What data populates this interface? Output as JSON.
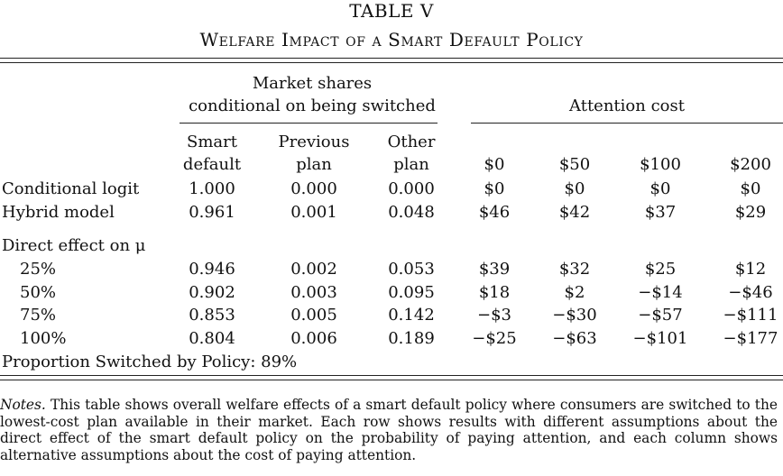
{
  "table_number": "TABLE V",
  "table_title": "Welfare Impact of a Smart Default Policy",
  "group_headers": {
    "market_shares_line1": "Market shares",
    "market_shares_line2": "conditional on being switched",
    "attention_cost": "Attention cost"
  },
  "columns": [
    {
      "line1": "Smart",
      "line2": "default"
    },
    {
      "line1": "Previous",
      "line2": "plan"
    },
    {
      "line1": "Other",
      "line2": "plan"
    },
    {
      "line1": "",
      "line2": "$0"
    },
    {
      "line1": "",
      "line2": "$50"
    },
    {
      "line1": "",
      "line2": "$100"
    },
    {
      "line1": "",
      "line2": "$200"
    }
  ],
  "rows": [
    {
      "label": "Conditional logit",
      "values": [
        "1.000",
        "0.000",
        "0.000",
        "$0",
        "$0",
        "$0",
        "$0"
      ]
    },
    {
      "label": "Hybrid model",
      "values": [
        "0.961",
        "0.001",
        "0.048",
        "$46",
        "$42",
        "$37",
        "$29"
      ]
    }
  ],
  "section_label": "Direct effect on μ",
  "section_rows": [
    {
      "label": "25%",
      "values": [
        "0.946",
        "0.002",
        "0.053",
        "$39",
        "$32",
        "$25",
        "$12"
      ]
    },
    {
      "label": "50%",
      "values": [
        "0.902",
        "0.003",
        "0.095",
        "$18",
        "$2",
        "−$14",
        "−$46"
      ]
    },
    {
      "label": "75%",
      "values": [
        "0.853",
        "0.005",
        "0.142",
        "−$3",
        "−$30",
        "−$57",
        "−$111"
      ]
    },
    {
      "label": "100%",
      "values": [
        "0.804",
        "0.006",
        "0.189",
        "−$25",
        "−$63",
        "−$101",
        "−$177"
      ]
    }
  ],
  "footer_row": "Proportion Switched by Policy: 89%",
  "notes": {
    "label": "Notes.",
    "text": "This table shows overall welfare effects of a smart default policy where consumers are switched to the lowest-cost plan available in their market. Each row shows results with different assumptions about the direct effect of the smart default policy on the probability of paying attention, and each column shows alternative assumptions about the cost of paying attention."
  }
}
